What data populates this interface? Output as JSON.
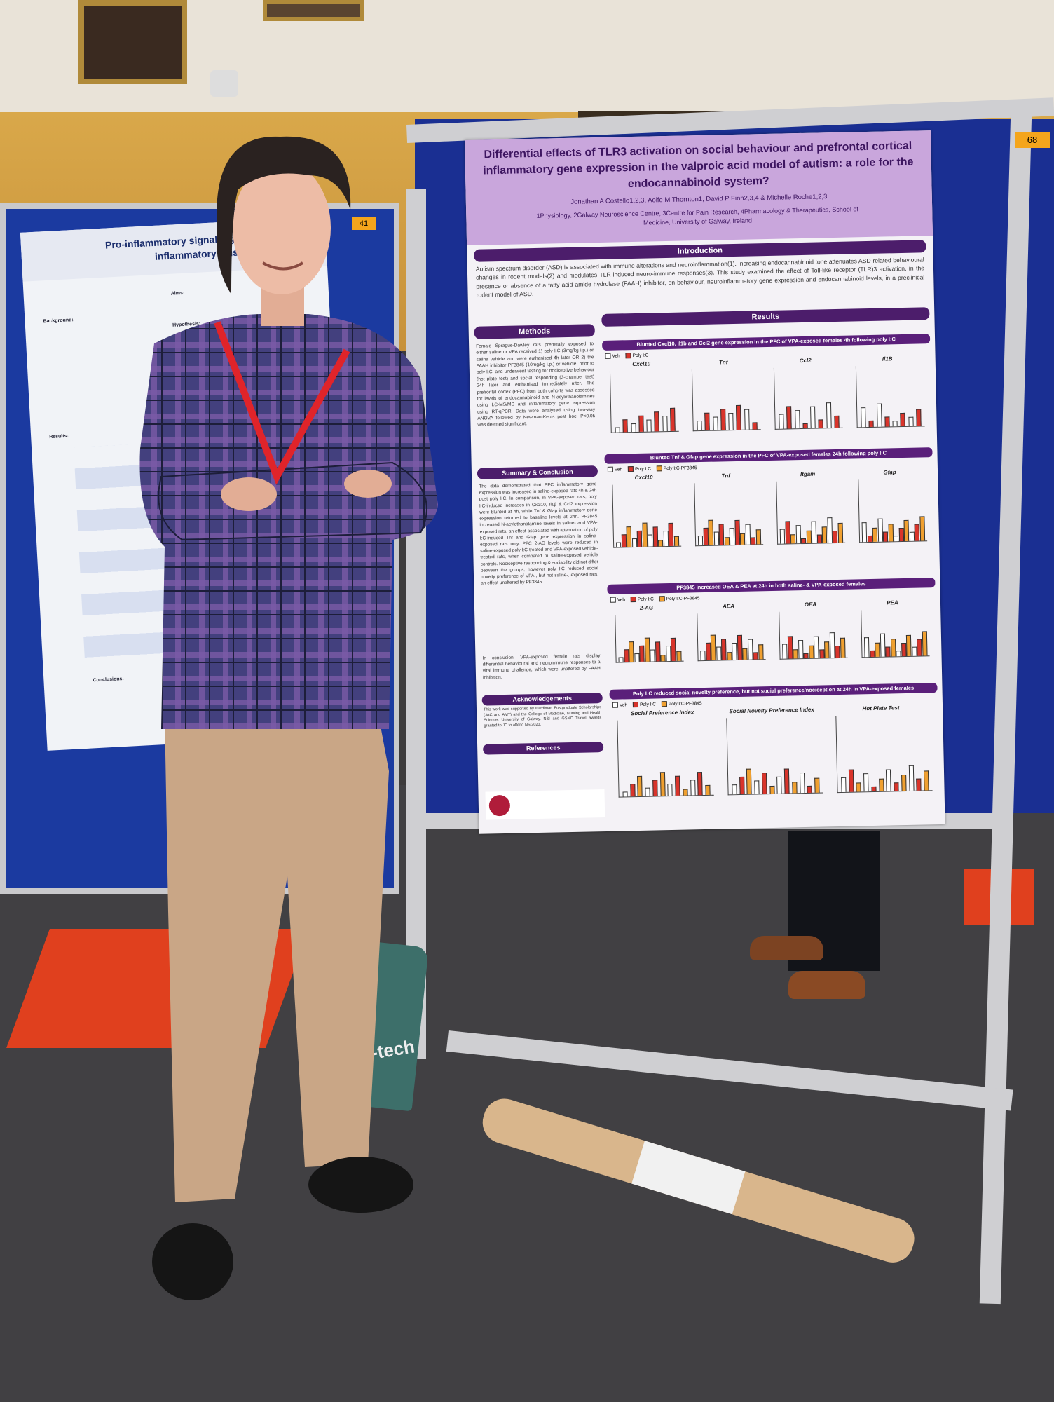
{
  "board_numbers": [
    "68",
    "41"
  ],
  "left_poster": {
    "title": [
      "Pro-inflammatory signalling along the",
      "inflammatory axis in microgl"
    ],
    "headings": [
      "Background:",
      "Aims:",
      "Hypothesis:",
      "Results:",
      "Conclusions:"
    ]
  },
  "main_poster": {
    "title": "Differential effects of TLR3 activation on social behaviour and prefrontal cortical inflammatory gene expression in the valproic acid model of autism: a role for the endocannabinoid system?",
    "authors": "Jonathan A Costello1,2,3, Aoife M Thornton1, David P Finn2,3,4 & Michelle Roche1,2,3",
    "affiliation": "1Physiology, 2Galway Neuroscience Centre, 3Centre for Pain Research, 4Pharmacology & Therapeutics, School of Medicine, University of Galway, Ireland",
    "introduction": {
      "heading": "Introduction",
      "text": "Autism spectrum disorder (ASD) is associated with immune alterations and neuroinflammation(1). Increasing endocannabinoid tone attenuates ASD-related behavioural changes in rodent models(2) and modulates TLR-induced neuro-immune responses(3). This study examined the effect of Toll-like receptor (TLR)3 activation, in the presence or absence of a fatty acid amide hydrolase (FAAH) inhibitor, on behaviour, neuroinflammatory gene expression and endocannabinoid levels, in a preclinical rodent model of ASD."
    },
    "methods": {
      "heading": "Methods",
      "text": "Female Sprague-Dawley rats prenatally exposed to either saline or VPA received 1) poly I:C (3mg/kg i.p.) or saline vehicle and were euthanised 4h later OR 2) the FAAH inhibitor PF3845 (10mg/kg i.p.) or vehicle, prior to poly I:C, and underwent testing for nociceptive behaviour (hot plate test) and social responding (3-chamber test) 24h later and euthanised immediately after. The prefrontal cortex (PFC) from both cohorts was assessed for levels of endocannabinoid and N-acylethanolamines using LC-MS/MS and inflammatory gene expression using RT-qPCR. Data were analysed using two-way ANOVA followed by Newman-Keuls post hoc: P<0.05 was deemed significant."
    },
    "summary": {
      "heading": "Summary & Conclusion",
      "text": "The data demonstrated that PFC inflammatory gene expression was increased in saline-exposed rats 4h & 24h post poly I:C. In comparison, in VPA-exposed rats, poly I:C-induced increases in Cxcl10, Il1β & Ccl2 expression were blunted at 4h, while Tnf & Gfap inflammatory gene expression returned to baseline levels at 24h. PF3845 increased N-acylethanolamine levels in saline- and VPA-exposed rats, an effect associated with attenuation of poly I:C-induced Tnf and Gfap gene expression in saline-exposed rats only. PFC 2-AG levels were reduced in saline-exposed poly I:C-treated and VPA-exposed vehicle-treated rats, when compared to saline-exposed vehicle controls. Nociceptive responding & sociability did not differ between the groups, however poly I:C reduced social novelty preference of VPA-, but not saline-, exposed rats, an effect unaltered by PF3845.",
      "conclusion": "In conclusion, VPA-exposed female rats display differential behavioural and neuroimmune responses to a viral immune challenge, which were unaltered by FAAH inhibition."
    },
    "acknowledgements": {
      "heading": "Acknowledgements",
      "text": "This work was supported by Hardiman Postgraduate Scholarships (JAC and AMT) and the College of Medicine, Nursing and Health Science, University of Galway. NSI and GSNC Travel awards granted to JC to attend NSI2023."
    },
    "references": {
      "heading": "References"
    },
    "results": {
      "heading": "Results",
      "legend": [
        "Veh",
        "Poly I:C",
        "Poly I:C-PF3845"
      ],
      "sections": [
        {
          "strip": "Blunted Cxcl10, Il1b and Ccl2 gene expression in the PFC of VPA-exposed females 4h following poly I:C",
          "panels": [
            "Cxcl10",
            "Tnf",
            "Ccl2",
            "Il1B"
          ]
        },
        {
          "strip": "Blunted Tnf & Gfap gene expression in the PFC of VPA-exposed females 24h following poly I:C",
          "panels": [
            "Cxcl10",
            "Tnf",
            "Itgam",
            "Gfap"
          ]
        },
        {
          "strip": "PF3845 increased OEA & PEA at 24h in both saline- & VPA-exposed females",
          "panels": [
            "2-AG",
            "AEA",
            "OEA",
            "PEA"
          ]
        },
        {
          "strip": "Poly I:C reduced social novelty preference, but not social preference/nociception at 24h in VPA-exposed females",
          "panels": [
            "Social Preference Index",
            "Social Novelty Preference Index",
            "Hot Plate Test"
          ]
        }
      ]
    }
  },
  "bag_text": "bio-tech"
}
